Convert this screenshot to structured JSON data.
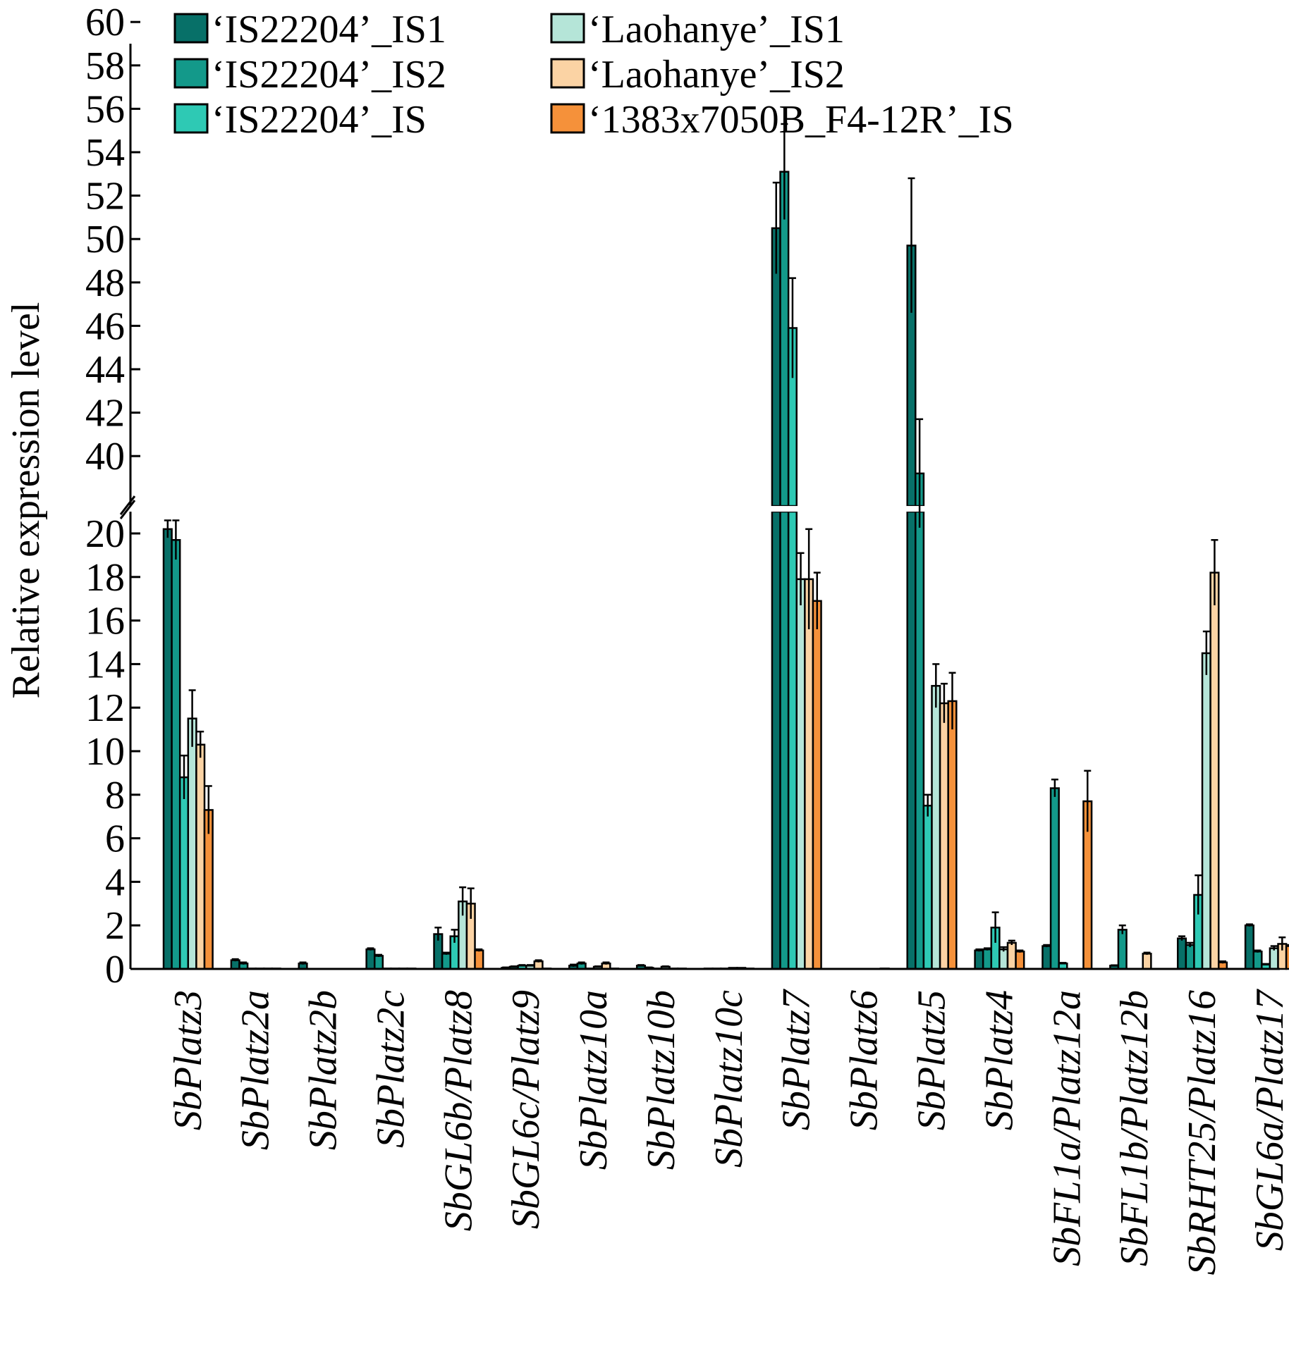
{
  "chart_data": {
    "type": "bar",
    "ylabel": "Relative expression level",
    "y_axis_break": {
      "lower_range": [
        0,
        21
      ],
      "upper_range": [
        39,
        60
      ]
    },
    "yticks_lower": [
      "0",
      "2",
      "4",
      "6",
      "8",
      "10",
      "12",
      "14",
      "16",
      "18",
      "20"
    ],
    "yticks_upper": [
      "40",
      "42",
      "44",
      "46",
      "48",
      "50",
      "52",
      "54",
      "56",
      "58",
      "60"
    ],
    "legend_position": "top",
    "categories": [
      "SbPlatz3",
      "SbPlatz2a",
      "SbPlatz2b",
      "SbPlatz2c",
      "SbGL6b/Platz8",
      "SbGL6c/Platz9",
      "SbPlatz10a",
      "SbPlatz10b",
      "SbPlatz10c",
      "SbPlatz7",
      "SbPlatz6",
      "SbPlatz5",
      "SbPlatz4",
      "SbFL1a/Platz12a",
      "SbFL1b/Platz12b",
      "SbRHT25/Platz16",
      "SbGL6a/Platz17"
    ],
    "series": [
      {
        "name": "‘IS22204’_IS1",
        "color": "#077068",
        "values": [
          20.2,
          0.4,
          0.25,
          0.9,
          1.6,
          0.05,
          0.15,
          0.15,
          0.02,
          50.5,
          0,
          49.7,
          0.85,
          1.05,
          0.15,
          1.4,
          2.0
        ],
        "errors": [
          0.4,
          0.05,
          0.05,
          0.05,
          0.3,
          0.02,
          0.05,
          0.03,
          0.01,
          2.1,
          0,
          3.1,
          0.05,
          0.05,
          0.02,
          0.1,
          0.05
        ]
      },
      {
        "name": "‘IS22204’_IS2",
        "color": "#13998a",
        "values": [
          19.7,
          0.25,
          0,
          0.6,
          0.7,
          0.1,
          0.25,
          0.05,
          0.02,
          53.1,
          0,
          39.2,
          0.9,
          8.3,
          1.8,
          1.1,
          0.8
        ],
        "errors": [
          0.9,
          0.05,
          0,
          0.05,
          0.05,
          0.02,
          0.05,
          0.02,
          0.01,
          2.2,
          0,
          2.5,
          0.05,
          0.4,
          0.2,
          0.1,
          0.05
        ]
      },
      {
        "name": "‘IS22204’_IS",
        "color": "#2ec9b4",
        "values": [
          8.8,
          0.02,
          0,
          0.02,
          1.5,
          0.15,
          0.02,
          0.02,
          0.02,
          45.9,
          0,
          7.5,
          1.9,
          0.25,
          0,
          3.4,
          0.2
        ],
        "errors": [
          1.0,
          0.01,
          0,
          0.01,
          0.3,
          0.03,
          0.01,
          0.01,
          0.01,
          2.3,
          0,
          0.5,
          0.7,
          0.03,
          0,
          0.9,
          0.03
        ]
      },
      {
        "name": "‘Laohanye’_IS1",
        "color": "#b5e5d8",
        "values": [
          11.5,
          0.02,
          0,
          0.02,
          3.1,
          0.15,
          0.1,
          0.1,
          0.05,
          17.9,
          0,
          13.0,
          0.9,
          0,
          0,
          14.5,
          0.95
        ],
        "errors": [
          1.3,
          0.01,
          0,
          0.01,
          0.65,
          0.03,
          0.02,
          0.02,
          0.01,
          1.2,
          0,
          1.0,
          0.1,
          0,
          0,
          1.0,
          0.1
        ]
      },
      {
        "name": "‘Laohanye’_IS2",
        "color": "#fbd3a4",
        "values": [
          10.3,
          0.02,
          0,
          0.02,
          3.0,
          0.35,
          0.25,
          0.02,
          0.05,
          17.9,
          0,
          12.2,
          1.2,
          0,
          0.7,
          18.2,
          1.15
        ],
        "errors": [
          0.6,
          0.01,
          0,
          0.01,
          0.7,
          0.05,
          0.05,
          0.01,
          0.01,
          2.3,
          0,
          0.9,
          0.1,
          0,
          0.05,
          1.5,
          0.3
        ]
      },
      {
        "name": "‘1383x7050B_F4-12R’_IS",
        "color": "#f5913a",
        "values": [
          7.3,
          0.02,
          0,
          0.02,
          0.85,
          0.02,
          0.02,
          0.02,
          0.02,
          16.9,
          0.02,
          12.3,
          0.8,
          7.7,
          0,
          0.3,
          1.05
        ],
        "errors": [
          1.1,
          0.01,
          0,
          0.01,
          0.05,
          0.01,
          0.01,
          0.01,
          0.01,
          1.3,
          0.01,
          1.3,
          0.05,
          1.4,
          0,
          0.05,
          0.05
        ]
      }
    ]
  }
}
